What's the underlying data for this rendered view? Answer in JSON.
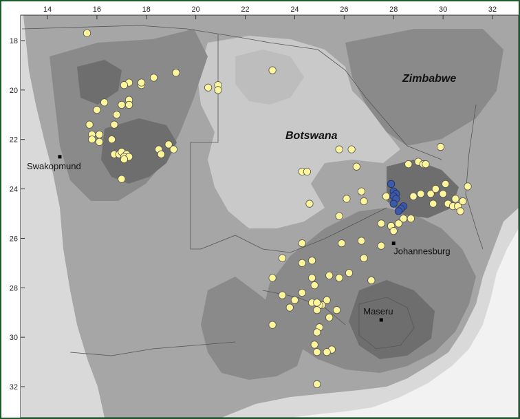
{
  "map": {
    "longitude_ticks": [
      "14",
      "16",
      "18",
      "20",
      "22",
      "24",
      "26",
      "28",
      "30",
      "32"
    ],
    "latitude_ticks": [
      "18",
      "20",
      "22",
      "24",
      "26",
      "28",
      "30",
      "32"
    ],
    "country_labels": [
      "Botswana",
      "Zimbabwe"
    ],
    "cities": [
      {
        "name": "Swakopmund",
        "lon": 14.5,
        "lat": -22.7
      },
      {
        "name": "Johannesburg",
        "lon": 28.0,
        "lat": -26.2
      },
      {
        "name": "Maseru",
        "lon": 27.5,
        "lat": -29.3
      }
    ],
    "colors": {
      "frame": "#1f5a2c",
      "ocean": "#f2f2f2",
      "lowland": "#d9d9d9",
      "plateau": "#a6a6a6",
      "upland": "#8a8a8a",
      "highland": "#6e6e6e",
      "yellow_points": "#fff59a",
      "blue_points": "#3c5aa8"
    },
    "yellow_points": [
      [
        15.6,
        -17.7
      ],
      [
        19.2,
        -19.3
      ],
      [
        23.1,
        -19.2
      ],
      [
        17.3,
        -19.7
      ],
      [
        17.1,
        -19.8
      ],
      [
        17.8,
        -19.8
      ],
      [
        17.8,
        -19.7
      ],
      [
        18.3,
        -19.5
      ],
      [
        20.5,
        -19.9
      ],
      [
        20.9,
        -19.8
      ],
      [
        20.9,
        -20.0
      ],
      [
        16.3,
        -20.5
      ],
      [
        16.0,
        -20.8
      ],
      [
        17.0,
        -20.6
      ],
      [
        17.3,
        -20.4
      ],
      [
        17.3,
        -20.6
      ],
      [
        16.8,
        -21.0
      ],
      [
        15.7,
        -21.4
      ],
      [
        16.7,
        -21.4
      ],
      [
        15.8,
        -21.8
      ],
      [
        16.1,
        -21.8
      ],
      [
        15.8,
        -22.0
      ],
      [
        16.1,
        -22.1
      ],
      [
        16.6,
        -22.0
      ],
      [
        18.9,
        -22.2
      ],
      [
        18.5,
        -22.4
      ],
      [
        19.1,
        -22.4
      ],
      [
        18.6,
        -22.6
      ],
      [
        16.7,
        -22.6
      ],
      [
        16.9,
        -22.6
      ],
      [
        17.0,
        -22.5
      ],
      [
        17.2,
        -22.6
      ],
      [
        17.1,
        -22.7
      ],
      [
        17.3,
        -22.7
      ],
      [
        17.1,
        -22.8
      ],
      [
        17.0,
        -23.6
      ],
      [
        24.3,
        -23.3
      ],
      [
        24.5,
        -23.3
      ],
      [
        25.8,
        -22.4
      ],
      [
        26.3,
        -22.4
      ],
      [
        26.5,
        -23.1
      ],
      [
        29.9,
        -22.3
      ],
      [
        28.6,
        -23.0
      ],
      [
        29.0,
        -22.9
      ],
      [
        29.2,
        -23.0
      ],
      [
        29.3,
        -23.0
      ],
      [
        26.7,
        -24.1
      ],
      [
        26.1,
        -24.4
      ],
      [
        26.8,
        -24.5
      ],
      [
        24.6,
        -24.6
      ],
      [
        27.7,
        -24.3
      ],
      [
        28.8,
        -24.3
      ],
      [
        29.1,
        -24.2
      ],
      [
        29.5,
        -24.2
      ],
      [
        29.7,
        -24.0
      ],
      [
        30.1,
        -23.8
      ],
      [
        30.0,
        -24.2
      ],
      [
        31.0,
        -23.9
      ],
      [
        29.6,
        -24.6
      ],
      [
        30.5,
        -24.4
      ],
      [
        30.2,
        -24.6
      ],
      [
        30.4,
        -24.7
      ],
      [
        30.6,
        -24.7
      ],
      [
        30.8,
        -24.5
      ],
      [
        30.7,
        -24.9
      ],
      [
        28.4,
        -25.2
      ],
      [
        28.7,
        -25.2
      ],
      [
        28.2,
        -25.4
      ],
      [
        27.5,
        -25.4
      ],
      [
        27.9,
        -25.5
      ],
      [
        25.8,
        -25.1
      ],
      [
        26.7,
        -26.1
      ],
      [
        28.0,
        -25.7
      ],
      [
        27.5,
        -26.3
      ],
      [
        24.3,
        -26.2
      ],
      [
        24.3,
        -27.0
      ],
      [
        24.7,
        -26.9
      ],
      [
        25.9,
        -26.2
      ],
      [
        23.5,
        -26.8
      ],
      [
        26.8,
        -26.8
      ],
      [
        23.1,
        -27.6
      ],
      [
        24.7,
        -27.6
      ],
      [
        25.4,
        -27.5
      ],
      [
        25.8,
        -27.6
      ],
      [
        26.2,
        -27.4
      ],
      [
        27.1,
        -27.7
      ],
      [
        24.8,
        -27.9
      ],
      [
        23.5,
        -28.3
      ],
      [
        24.0,
        -28.5
      ],
      [
        24.3,
        -28.2
      ],
      [
        23.8,
        -28.8
      ],
      [
        24.7,
        -28.6
      ],
      [
        25.3,
        -28.5
      ],
      [
        25.1,
        -28.7
      ],
      [
        25.0,
        -28.7
      ],
      [
        24.9,
        -28.9
      ],
      [
        24.9,
        -28.6
      ],
      [
        25.7,
        -28.9
      ],
      [
        25.4,
        -29.2
      ],
      [
        23.1,
        -29.5
      ],
      [
        25.0,
        -29.6
      ],
      [
        24.9,
        -29.8
      ],
      [
        24.8,
        -30.3
      ],
      [
        25.5,
        -30.5
      ],
      [
        25.3,
        -30.6
      ],
      [
        24.9,
        -30.6
      ],
      [
        24.9,
        -31.9
      ]
    ],
    "blue_points": [
      [
        27.9,
        -23.8
      ],
      [
        28.0,
        -24.1
      ],
      [
        28.1,
        -24.2
      ],
      [
        28.0,
        -24.3
      ],
      [
        28.1,
        -24.4
      ],
      [
        28.0,
        -24.6
      ],
      [
        28.4,
        -24.7
      ],
      [
        28.3,
        -24.8
      ],
      [
        28.2,
        -24.9
      ]
    ]
  }
}
